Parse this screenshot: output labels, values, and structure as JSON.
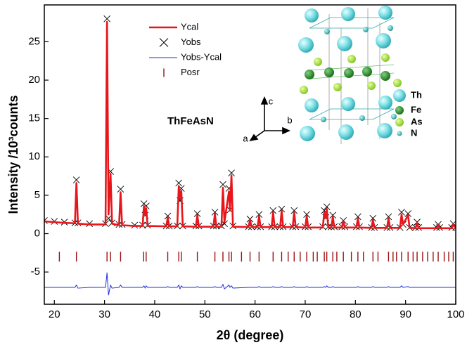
{
  "chart_data": {
    "type": "line",
    "xlabel": "2θ (degree)",
    "ylabel": "Intensity /10³counts",
    "xlim": [
      18,
      100
    ],
    "ylim": [
      -9.2,
      29.8
    ],
    "xticks": [
      20,
      30,
      40,
      50,
      60,
      70,
      80,
      90,
      100
    ],
    "yticks": [
      -5,
      0,
      5,
      10,
      15,
      20,
      25
    ],
    "x": [
      18,
      20,
      22,
      24.1,
      24.4,
      24.7,
      27,
      30.2,
      30.5,
      30.8,
      31.2,
      31.5,
      32.9,
      33.2,
      33.5,
      36,
      37.6,
      37.85,
      38.1,
      38.3,
      38.6,
      42.3,
      42.6,
      42.9,
      44.5,
      44.8,
      45.05,
      45.3,
      45.6,
      48.2,
      48.5,
      48.8,
      51.7,
      52.0,
      52.3,
      53.3,
      53.6,
      53.9,
      54.8,
      55.0,
      55.3,
      55.6,
      58.7,
      59.0,
      59.3,
      60.5,
      60.8,
      61.1,
      63.3,
      63.6,
      63.9,
      65.0,
      65.3,
      65.6,
      67.5,
      67.8,
      68.1,
      70.0,
      70.3,
      70.6,
      73.5,
      73.8,
      74.1,
      74.3,
      74.6,
      75.2,
      75.5,
      75.8,
      77.3,
      77.6,
      77.9,
      80.2,
      80.5,
      80.8,
      83.2,
      83.5,
      83.8,
      86.3,
      86.6,
      86.9,
      88.9,
      89.2,
      89.5,
      90.5,
      90.8,
      92.0,
      92.3,
      92.6,
      96.2,
      96.5,
      96.8,
      99.2,
      99.5,
      100
    ],
    "series": [
      {
        "name": "Ycal",
        "color": "#e8161b",
        "style": "line",
        "values": [
          1.6,
          1.5,
          1.4,
          1.35,
          6.6,
          1.3,
          1.2,
          1.2,
          27.6,
          2.5,
          7.8,
          1.3,
          1.1,
          5.4,
          1.1,
          1.0,
          1.0,
          3.6,
          2.5,
          3.3,
          1.0,
          0.95,
          2.1,
          0.95,
          0.95,
          6.2,
          4.5,
          5.6,
          0.95,
          0.9,
          2.4,
          0.9,
          0.9,
          2.6,
          0.9,
          0.9,
          6.0,
          1.5,
          5.5,
          3.0,
          7.6,
          0.9,
          0.85,
          1.8,
          0.85,
          0.85,
          2.3,
          0.85,
          0.85,
          2.8,
          0.85,
          0.85,
          3.0,
          0.85,
          0.85,
          2.8,
          0.85,
          0.8,
          2.3,
          0.8,
          0.8,
          2.8,
          2.0,
          3.2,
          0.8,
          0.8,
          2.2,
          0.8,
          0.8,
          1.6,
          0.8,
          0.8,
          2.0,
          0.8,
          0.75,
          1.8,
          0.75,
          0.75,
          2.0,
          0.75,
          0.75,
          2.5,
          1.2,
          2.4,
          0.75,
          0.72,
          1.4,
          0.72,
          0.7,
          1.1,
          0.7,
          0.7,
          1.2,
          0.7
        ]
      },
      {
        "name": "Yobs",
        "color": "#000000",
        "style": "cross",
        "values": [
          1.7,
          1.6,
          1.5,
          1.4,
          7.0,
          1.4,
          1.3,
          1.3,
          28.0,
          2.0,
          8.1,
          1.4,
          1.2,
          5.8,
          1.2,
          1.1,
          1.1,
          3.9,
          2.4,
          3.6,
          1.1,
          1.0,
          2.3,
          1.0,
          1.0,
          6.6,
          4.3,
          5.9,
          1.0,
          1.0,
          2.6,
          1.0,
          1.0,
          2.8,
          1.0,
          1.0,
          6.4,
          1.3,
          5.9,
          3.1,
          7.9,
          1.0,
          0.9,
          1.9,
          0.9,
          0.9,
          2.5,
          0.9,
          0.9,
          3.0,
          0.9,
          0.9,
          3.2,
          0.9,
          0.9,
          3.0,
          0.9,
          0.9,
          2.5,
          0.9,
          0.9,
          3.0,
          2.1,
          3.5,
          0.9,
          0.9,
          2.4,
          0.9,
          0.9,
          1.7,
          0.9,
          0.9,
          2.2,
          0.9,
          0.8,
          2.0,
          0.8,
          0.8,
          2.2,
          0.8,
          0.8,
          2.8,
          1.2,
          2.6,
          0.8,
          0.8,
          1.5,
          0.8,
          0.8,
          1.2,
          0.8,
          0.8,
          1.3,
          0.8
        ]
      },
      {
        "name": "Yobs-Ycal",
        "color": "#1f2fd8",
        "style": "thin",
        "values": [
          -7.0,
          -7.0,
          -7.0,
          -7.0,
          -6.7,
          -7.1,
          -7.0,
          -7.0,
          -5.1,
          -8.0,
          -6.7,
          -7.1,
          -7.0,
          -6.7,
          -7.0,
          -7.0,
          -7.0,
          -6.8,
          -7.1,
          -6.8,
          -7.0,
          -7.0,
          -6.9,
          -7.0,
          -7.0,
          -6.7,
          -7.2,
          -6.8,
          -7.0,
          -7.0,
          -6.9,
          -7.0,
          -7.0,
          -6.9,
          -7.0,
          -7.0,
          -6.6,
          -7.2,
          -6.7,
          -7.0,
          -6.8,
          -7.1,
          -7.0,
          -7.0,
          -7.0,
          -7.0,
          -6.9,
          -7.0,
          -7.0,
          -6.9,
          -7.0,
          -7.0,
          -6.9,
          -7.0,
          -7.0,
          -6.9,
          -7.0,
          -7.0,
          -6.9,
          -7.0,
          -7.0,
          -6.9,
          -7.0,
          -6.8,
          -7.0,
          -7.0,
          -6.9,
          -7.0,
          -7.0,
          -7.0,
          -7.0,
          -7.0,
          -6.9,
          -7.0,
          -7.0,
          -6.9,
          -7.0,
          -7.0,
          -6.9,
          -7.0,
          -7.0,
          -6.8,
          -7.0,
          -6.9,
          -7.0,
          -7.0,
          -7.0,
          -7.0,
          -7.0,
          -7.0,
          -7.0,
          -7.0,
          -7.0,
          -7.0
        ]
      },
      {
        "name": "Posr",
        "color": "#9b1111",
        "style": "tick",
        "x": [
          21,
          24.4,
          30.5,
          31.2,
          33.2,
          37.8,
          38.3,
          42.6,
          44.8,
          45.3,
          48.5,
          52,
          53.6,
          54.8,
          55.3,
          57.3,
          59,
          60.8,
          63.6,
          65.3,
          66.6,
          67.8,
          69,
          70.3,
          71.6,
          72.4,
          73.8,
          74.3,
          75.5,
          76.3,
          77.6,
          79.2,
          80.5,
          81.6,
          83.5,
          84.5,
          86.6,
          87.5,
          88.2,
          89.2,
          90.5,
          91.5,
          92.3,
          93.4,
          94.4,
          95.5,
          96.5,
          97.7,
          98.6,
          99.5
        ],
        "values": [
          -3,
          -3,
          -3,
          -3,
          -3,
          -3,
          -3,
          -3,
          -3,
          -3,
          -3,
          -3,
          -3,
          -3,
          -3,
          -3,
          -3,
          -3,
          -3,
          -3,
          -3,
          -3,
          -3,
          -3,
          -3,
          -3,
          -3,
          -3,
          -3,
          -3,
          -3,
          -3,
          -3,
          -3,
          -3,
          -3,
          -3,
          -3,
          -3,
          -3,
          -3,
          -3,
          -3,
          -3,
          -3,
          -3,
          -3,
          -3,
          -3,
          -3
        ]
      }
    ],
    "annotations": {
      "compound": "ThFeAsN",
      "axes": [
        "a",
        "b",
        "c"
      ],
      "species": [
        "Th",
        "Fe",
        "As",
        "N"
      ]
    }
  }
}
